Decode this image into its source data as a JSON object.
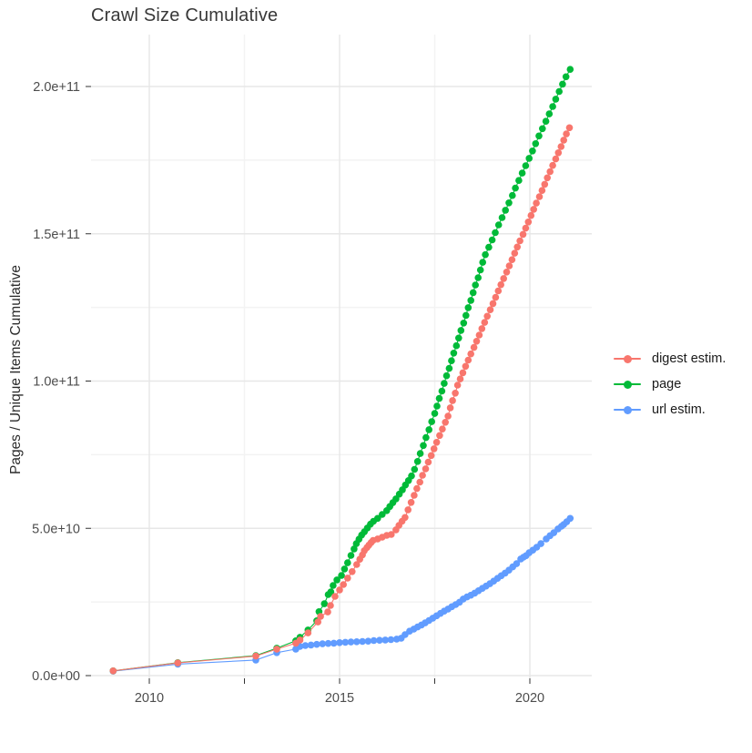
{
  "chart_data": {
    "type": "scatter",
    "title": "Crawl Size Cumulative",
    "xlabel": "",
    "ylabel": "Pages / Unique Items Cumulative",
    "values_unit_note": "point values are in billions (1e9); axis labels use scientific notation",
    "x_axis": {
      "range_years": [
        2008.47,
        2021.63
      ],
      "tick_positions": [
        2010,
        2012.5,
        2015,
        2017.5,
        2020
      ],
      "labeled_ticks": [
        {
          "year": 2010,
          "label": "2010"
        },
        {
          "year": 2015,
          "label": "2015"
        },
        {
          "year": 2020,
          "label": "2020"
        }
      ]
    },
    "y_axis": {
      "range_e9": [
        0,
        218
      ],
      "major_ticks": [
        {
          "value_e9": 0,
          "label": "0.0e+00"
        },
        {
          "value_e9": 50,
          "label": "5.0e+10"
        },
        {
          "value_e9": 100,
          "label": "1.0e+11"
        },
        {
          "value_e9": 150,
          "label": "1.5e+11"
        },
        {
          "value_e9": 200,
          "label": "2.0e+11"
        }
      ],
      "minor_ticks_e9": [
        25,
        75,
        125,
        175
      ]
    },
    "legend": {
      "position": "right",
      "order": [
        "digest estim.",
        "page",
        "url estim."
      ]
    },
    "series": [
      {
        "name": "digest estim.",
        "color": "#F8766D",
        "points": [
          [
            2009.05,
            1.6
          ],
          [
            2010.75,
            4.3
          ],
          [
            2012.8,
            6.6
          ],
          [
            2013.35,
            9.0
          ],
          [
            2013.85,
            11.0
          ],
          [
            2013.96,
            12.1
          ],
          [
            2014.17,
            14.5
          ],
          [
            2014.43,
            18.2
          ],
          [
            2014.5,
            20.1
          ],
          [
            2014.69,
            21.6
          ],
          [
            2014.76,
            23.8
          ],
          [
            2014.88,
            26.9
          ],
          [
            2015.0,
            29.1
          ],
          [
            2015.1,
            30.9
          ],
          [
            2015.21,
            33.1
          ],
          [
            2015.33,
            35.3
          ],
          [
            2015.45,
            37.7
          ],
          [
            2015.53,
            39.5
          ],
          [
            2015.6,
            41.0
          ],
          [
            2015.65,
            42.4
          ],
          [
            2015.72,
            43.5
          ],
          [
            2015.77,
            44.3
          ],
          [
            2015.83,
            45.2
          ],
          [
            2015.88,
            45.9
          ],
          [
            2016.0,
            46.4
          ],
          [
            2016.12,
            47.0
          ],
          [
            2016.24,
            47.6
          ],
          [
            2016.36,
            47.9
          ],
          [
            2016.48,
            49.5
          ],
          [
            2016.56,
            51.0
          ],
          [
            2016.64,
            52.4
          ],
          [
            2016.72,
            53.7
          ],
          [
            2016.8,
            56.3
          ],
          [
            2016.88,
            58.8
          ],
          [
            2016.96,
            61.2
          ],
          [
            2017.03,
            63.5
          ],
          [
            2017.11,
            65.7
          ],
          [
            2017.18,
            68.0
          ],
          [
            2017.26,
            70.2
          ],
          [
            2017.33,
            72.5
          ],
          [
            2017.41,
            74.7
          ],
          [
            2017.48,
            77.0
          ],
          [
            2017.55,
            79.2
          ],
          [
            2017.63,
            81.5
          ],
          [
            2017.7,
            83.7
          ],
          [
            2017.78,
            86.0
          ],
          [
            2017.85,
            88.1
          ],
          [
            2017.91,
            90.9
          ],
          [
            2017.97,
            93.4
          ],
          [
            2018.04,
            95.9
          ],
          [
            2018.1,
            98.6
          ],
          [
            2018.17,
            100.7
          ],
          [
            2018.24,
            102.8
          ],
          [
            2018.31,
            105.0
          ],
          [
            2018.38,
            107.1
          ],
          [
            2018.45,
            109.2
          ],
          [
            2018.53,
            111.4
          ],
          [
            2018.6,
            113.5
          ],
          [
            2018.67,
            115.6
          ],
          [
            2018.74,
            117.8
          ],
          [
            2018.81,
            119.9
          ],
          [
            2018.88,
            122.0
          ],
          [
            2018.96,
            124.2
          ],
          [
            2019.03,
            126.3
          ],
          [
            2019.1,
            128.4
          ],
          [
            2019.17,
            130.6
          ],
          [
            2019.24,
            132.7
          ],
          [
            2019.31,
            134.8
          ],
          [
            2019.39,
            137.0
          ],
          [
            2019.46,
            139.1
          ],
          [
            2019.53,
            141.2
          ],
          [
            2019.6,
            143.4
          ],
          [
            2019.67,
            145.5
          ],
          [
            2019.74,
            147.6
          ],
          [
            2019.82,
            149.8
          ],
          [
            2019.89,
            151.9
          ],
          [
            2019.96,
            154.0
          ],
          [
            2020.03,
            156.2
          ],
          [
            2020.1,
            158.3
          ],
          [
            2020.17,
            160.4
          ],
          [
            2020.25,
            162.6
          ],
          [
            2020.32,
            164.7
          ],
          [
            2020.39,
            166.8
          ],
          [
            2020.46,
            169.0
          ],
          [
            2020.53,
            171.1
          ],
          [
            2020.6,
            173.2
          ],
          [
            2020.68,
            175.4
          ],
          [
            2020.75,
            177.5
          ],
          [
            2020.82,
            179.6
          ],
          [
            2020.89,
            181.8
          ],
          [
            2020.96,
            183.9
          ],
          [
            2021.04,
            186.0
          ]
        ]
      },
      {
        "name": "page",
        "color": "#00BA38",
        "points": [
          [
            2009.05,
            1.6
          ],
          [
            2010.75,
            4.4
          ],
          [
            2012.8,
            6.8
          ],
          [
            2013.35,
            9.3
          ],
          [
            2013.85,
            11.8
          ],
          [
            2013.96,
            13.0
          ],
          [
            2014.17,
            15.5
          ],
          [
            2014.4,
            18.6
          ],
          [
            2014.46,
            21.7
          ],
          [
            2014.6,
            24.4
          ],
          [
            2014.7,
            27.5
          ],
          [
            2014.77,
            28.4
          ],
          [
            2014.83,
            30.6
          ],
          [
            2014.93,
            32.5
          ],
          [
            2015.05,
            34.0
          ],
          [
            2015.13,
            36.2
          ],
          [
            2015.21,
            38.3
          ],
          [
            2015.3,
            40.8
          ],
          [
            2015.38,
            43.0
          ],
          [
            2015.44,
            44.8
          ],
          [
            2015.51,
            46.3
          ],
          [
            2015.58,
            47.7
          ],
          [
            2015.65,
            48.8
          ],
          [
            2015.73,
            50.1
          ],
          [
            2015.81,
            51.4
          ],
          [
            2015.89,
            52.4
          ],
          [
            2016.0,
            53.4
          ],
          [
            2016.12,
            54.7
          ],
          [
            2016.24,
            56.0
          ],
          [
            2016.32,
            57.4
          ],
          [
            2016.4,
            58.7
          ],
          [
            2016.48,
            60.0
          ],
          [
            2016.57,
            61.6
          ],
          [
            2016.65,
            63.1
          ],
          [
            2016.73,
            64.7
          ],
          [
            2016.81,
            66.2
          ],
          [
            2016.89,
            67.8
          ],
          [
            2016.97,
            70.0
          ],
          [
            2017.05,
            72.7
          ],
          [
            2017.12,
            75.4
          ],
          [
            2017.2,
            78.1
          ],
          [
            2017.27,
            80.8
          ],
          [
            2017.35,
            83.5
          ],
          [
            2017.42,
            86.2
          ],
          [
            2017.5,
            89.0
          ],
          [
            2017.56,
            91.5
          ],
          [
            2017.62,
            94.1
          ],
          [
            2017.69,
            96.6
          ],
          [
            2017.75,
            99.2
          ],
          [
            2017.81,
            101.8
          ],
          [
            2017.88,
            104.3
          ],
          [
            2017.94,
            106.9
          ],
          [
            2018.0,
            109.5
          ],
          [
            2018.07,
            112.0
          ],
          [
            2018.13,
            114.6
          ],
          [
            2018.19,
            117.2
          ],
          [
            2018.26,
            119.7
          ],
          [
            2018.32,
            122.3
          ],
          [
            2018.38,
            124.9
          ],
          [
            2018.45,
            127.4
          ],
          [
            2018.51,
            130.0
          ],
          [
            2018.57,
            132.6
          ],
          [
            2018.64,
            135.1
          ],
          [
            2018.7,
            137.7
          ],
          [
            2018.76,
            140.3
          ],
          [
            2018.83,
            142.9
          ],
          [
            2018.92,
            145.4
          ],
          [
            2019.01,
            147.9
          ],
          [
            2019.09,
            150.4
          ],
          [
            2019.18,
            153.0
          ],
          [
            2019.27,
            155.5
          ],
          [
            2019.36,
            158.0
          ],
          [
            2019.45,
            160.5
          ],
          [
            2019.54,
            163.0
          ],
          [
            2019.62,
            165.5
          ],
          [
            2019.71,
            168.1
          ],
          [
            2019.8,
            170.6
          ],
          [
            2019.89,
            173.1
          ],
          [
            2019.98,
            175.6
          ],
          [
            2020.07,
            178.1
          ],
          [
            2020.15,
            180.6
          ],
          [
            2020.24,
            183.2
          ],
          [
            2020.33,
            185.7
          ],
          [
            2020.42,
            188.2
          ],
          [
            2020.51,
            190.7
          ],
          [
            2020.6,
            193.2
          ],
          [
            2020.68,
            195.7
          ],
          [
            2020.77,
            198.3
          ],
          [
            2020.86,
            200.8
          ],
          [
            2020.95,
            203.3
          ],
          [
            2021.06,
            205.8
          ]
        ]
      },
      {
        "name": "url estim.",
        "color": "#619CFF",
        "points": [
          [
            2009.05,
            1.5
          ],
          [
            2010.75,
            3.9
          ],
          [
            2012.8,
            5.3
          ],
          [
            2013.35,
            7.8
          ],
          [
            2013.85,
            9.0
          ],
          [
            2013.96,
            9.9
          ],
          [
            2014.1,
            10.2
          ],
          [
            2014.25,
            10.4
          ],
          [
            2014.4,
            10.6
          ],
          [
            2014.55,
            10.8
          ],
          [
            2014.7,
            10.9
          ],
          [
            2014.85,
            11.0
          ],
          [
            2015.0,
            11.2
          ],
          [
            2015.15,
            11.3
          ],
          [
            2015.3,
            11.4
          ],
          [
            2015.45,
            11.5
          ],
          [
            2015.6,
            11.6
          ],
          [
            2015.75,
            11.7
          ],
          [
            2015.9,
            11.9
          ],
          [
            2016.05,
            12.0
          ],
          [
            2016.2,
            12.1
          ],
          [
            2016.35,
            12.2
          ],
          [
            2016.5,
            12.4
          ],
          [
            2016.62,
            12.7
          ],
          [
            2016.72,
            13.9
          ],
          [
            2016.84,
            15.1
          ],
          [
            2016.95,
            15.8
          ],
          [
            2017.05,
            16.5
          ],
          [
            2017.15,
            17.2
          ],
          [
            2017.25,
            17.9
          ],
          [
            2017.35,
            18.7
          ],
          [
            2017.45,
            19.5
          ],
          [
            2017.55,
            20.3
          ],
          [
            2017.65,
            21.1
          ],
          [
            2017.75,
            21.9
          ],
          [
            2017.85,
            22.6
          ],
          [
            2017.95,
            23.4
          ],
          [
            2018.05,
            24.1
          ],
          [
            2018.15,
            24.9
          ],
          [
            2018.25,
            26.0
          ],
          [
            2018.35,
            26.7
          ],
          [
            2018.45,
            27.3
          ],
          [
            2018.55,
            28.0
          ],
          [
            2018.65,
            28.8
          ],
          [
            2018.75,
            29.6
          ],
          [
            2018.85,
            30.4
          ],
          [
            2018.95,
            31.2
          ],
          [
            2019.05,
            32.1
          ],
          [
            2019.15,
            33.0
          ],
          [
            2019.25,
            33.9
          ],
          [
            2019.35,
            34.8
          ],
          [
            2019.45,
            35.8
          ],
          [
            2019.55,
            36.9
          ],
          [
            2019.65,
            38.0
          ],
          [
            2019.76,
            39.6
          ],
          [
            2019.83,
            40.2
          ],
          [
            2019.9,
            40.7
          ],
          [
            2019.98,
            41.7
          ],
          [
            2020.08,
            42.6
          ],
          [
            2020.18,
            43.6
          ],
          [
            2020.29,
            44.8
          ],
          [
            2020.43,
            46.4
          ],
          [
            2020.53,
            47.5
          ],
          [
            2020.63,
            48.5
          ],
          [
            2020.74,
            49.8
          ],
          [
            2020.83,
            50.7
          ],
          [
            2020.89,
            51.3
          ],
          [
            2020.97,
            52.2
          ],
          [
            2021.06,
            53.4
          ]
        ]
      }
    ]
  },
  "colors": {
    "background": "#ffffff",
    "grid_major": "#e7e7e7",
    "grid_minor": "#f3f3f3",
    "tick_mark": "#333333",
    "tick_label": "#4d4d4d",
    "title_text": "#383838"
  }
}
